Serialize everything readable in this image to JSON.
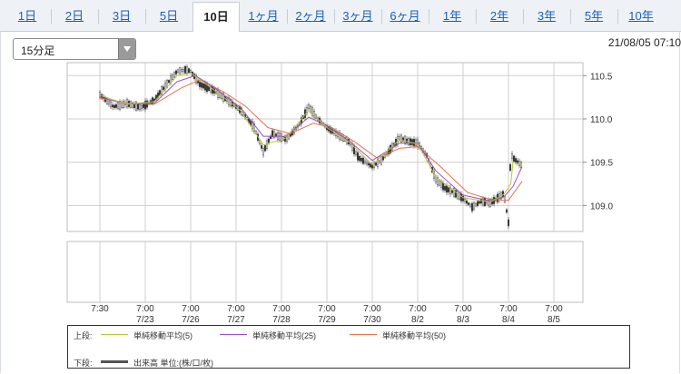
{
  "tabs": [
    {
      "label": "1日",
      "active": false
    },
    {
      "label": "2日",
      "active": false
    },
    {
      "label": "3日",
      "active": false
    },
    {
      "label": "5日",
      "active": false
    },
    {
      "label": "10日",
      "active": true
    },
    {
      "label": "1ヶ月",
      "active": false
    },
    {
      "label": "2ヶ月",
      "active": false
    },
    {
      "label": "3ヶ月",
      "active": false
    },
    {
      "label": "6ヶ月",
      "active": false
    },
    {
      "label": "1年",
      "active": false
    },
    {
      "label": "2年",
      "active": false
    },
    {
      "label": "3年",
      "active": false
    },
    {
      "label": "5年",
      "active": false
    },
    {
      "label": "10年",
      "active": false
    }
  ],
  "interval_select": {
    "value": "15分足"
  },
  "timestamp": "21/08/05 07:10",
  "legend": {
    "upper_label": "上段:",
    "lower_label": "下段:",
    "volume_label": "出来高 単位:(株/口/枚)"
  },
  "colors": {
    "ma5": "#b5c43a",
    "ma25": "#9b4fc9",
    "ma50": "#e0734c",
    "candle": "#444444",
    "volume": "#555555"
  },
  "chart_data": {
    "type": "line",
    "y_tick_labels": [
      "110.5",
      "110.0",
      "109.5",
      "109.0"
    ],
    "y_ticks": [
      110.5,
      110.0,
      109.5,
      109.0
    ],
    "ylim": [
      108.7,
      110.65
    ],
    "x_tick_labels": [
      [
        "7:30",
        ""
      ],
      [
        "7:00",
        "7/23"
      ],
      [
        "7:00",
        "7/26"
      ],
      [
        "7:00",
        "7/27"
      ],
      [
        "7:00",
        "7/28"
      ],
      [
        "7:00",
        "7/29"
      ],
      [
        "7:00",
        "7/30"
      ],
      [
        "7:00",
        "8/2"
      ],
      [
        "7:00",
        "8/3"
      ],
      [
        "7:00",
        "8/4"
      ],
      [
        "7:00",
        "8/5"
      ]
    ],
    "grid": true,
    "price_path": [
      [
        0.0,
        110.28
      ],
      [
        0.03,
        110.14
      ],
      [
        0.06,
        110.18
      ],
      [
        0.09,
        110.13
      ],
      [
        0.12,
        110.22
      ],
      [
        0.15,
        110.42
      ],
      [
        0.17,
        110.55
      ],
      [
        0.19,
        110.57
      ],
      [
        0.2,
        110.55
      ],
      [
        0.22,
        110.4
      ],
      [
        0.25,
        110.33
      ],
      [
        0.28,
        110.22
      ],
      [
        0.31,
        110.1
      ],
      [
        0.34,
        109.9
      ],
      [
        0.36,
        109.62
      ],
      [
        0.38,
        109.83
      ],
      [
        0.41,
        109.76
      ],
      [
        0.44,
        109.94
      ],
      [
        0.46,
        110.14
      ],
      [
        0.48,
        110.0
      ],
      [
        0.5,
        109.9
      ],
      [
        0.53,
        109.8
      ],
      [
        0.55,
        109.73
      ],
      [
        0.57,
        109.55
      ],
      [
        0.6,
        109.45
      ],
      [
        0.62,
        109.52
      ],
      [
        0.64,
        109.65
      ],
      [
        0.66,
        109.78
      ],
      [
        0.68,
        109.74
      ],
      [
        0.7,
        109.72
      ],
      [
        0.72,
        109.58
      ],
      [
        0.74,
        109.3
      ],
      [
        0.76,
        109.2
      ],
      [
        0.78,
        109.15
      ],
      [
        0.8,
        109.08
      ],
      [
        0.82,
        108.98
      ],
      [
        0.84,
        109.05
      ],
      [
        0.86,
        109.03
      ],
      [
        0.88,
        109.1
      ],
      [
        0.89,
        109.14
      ],
      [
        0.9,
        108.8
      ],
      [
        0.905,
        109.6
      ],
      [
        0.91,
        109.55
      ],
      [
        0.93,
        109.46
      ]
    ],
    "ma5_path": [
      [
        0.0,
        110.27
      ],
      [
        0.06,
        110.17
      ],
      [
        0.12,
        110.2
      ],
      [
        0.17,
        110.5
      ],
      [
        0.2,
        110.53
      ],
      [
        0.25,
        110.34
      ],
      [
        0.31,
        110.1
      ],
      [
        0.36,
        109.7
      ],
      [
        0.41,
        109.78
      ],
      [
        0.46,
        110.1
      ],
      [
        0.5,
        109.9
      ],
      [
        0.55,
        109.73
      ],
      [
        0.6,
        109.47
      ],
      [
        0.66,
        109.76
      ],
      [
        0.7,
        109.71
      ],
      [
        0.74,
        109.33
      ],
      [
        0.8,
        109.09
      ],
      [
        0.86,
        109.04
      ],
      [
        0.89,
        109.13
      ],
      [
        0.905,
        109.25
      ],
      [
        0.91,
        109.5
      ],
      [
        0.93,
        109.47
      ]
    ],
    "ma25_path": [
      [
        0.0,
        110.25
      ],
      [
        0.06,
        110.17
      ],
      [
        0.12,
        110.18
      ],
      [
        0.17,
        110.43
      ],
      [
        0.21,
        110.5
      ],
      [
        0.25,
        110.37
      ],
      [
        0.31,
        110.13
      ],
      [
        0.36,
        109.8
      ],
      [
        0.41,
        109.8
      ],
      [
        0.46,
        110.02
      ],
      [
        0.5,
        109.92
      ],
      [
        0.55,
        109.74
      ],
      [
        0.6,
        109.52
      ],
      [
        0.66,
        109.72
      ],
      [
        0.7,
        109.72
      ],
      [
        0.74,
        109.4
      ],
      [
        0.8,
        109.12
      ],
      [
        0.86,
        109.05
      ],
      [
        0.89,
        109.1
      ],
      [
        0.91,
        109.22
      ],
      [
        0.93,
        109.45
      ]
    ],
    "ma50_path": [
      [
        0.0,
        110.24
      ],
      [
        0.06,
        110.18
      ],
      [
        0.12,
        110.17
      ],
      [
        0.18,
        110.36
      ],
      [
        0.22,
        110.45
      ],
      [
        0.27,
        110.32
      ],
      [
        0.32,
        110.15
      ],
      [
        0.37,
        109.9
      ],
      [
        0.42,
        109.83
      ],
      [
        0.47,
        109.95
      ],
      [
        0.51,
        109.9
      ],
      [
        0.56,
        109.74
      ],
      [
        0.61,
        109.55
      ],
      [
        0.66,
        109.66
      ],
      [
        0.7,
        109.68
      ],
      [
        0.75,
        109.45
      ],
      [
        0.81,
        109.15
      ],
      [
        0.86,
        109.07
      ],
      [
        0.9,
        109.06
      ],
      [
        0.93,
        109.28
      ]
    ]
  }
}
